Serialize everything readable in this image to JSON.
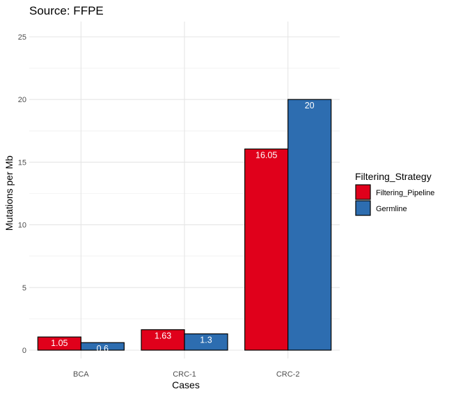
{
  "chart_data": {
    "type": "bar",
    "title": "Source: FFPE",
    "xlabel": "Cases",
    "ylabel": "Mutations per Mb",
    "categories": [
      "BCA",
      "CRC-1",
      "CRC-2"
    ],
    "series": [
      {
        "name": "Filtering_Pipeline",
        "color": "#e0001b",
        "values": [
          1.05,
          1.63,
          16.05
        ],
        "labels": [
          "1.05",
          "1.63",
          "16.05"
        ]
      },
      {
        "name": "Germline",
        "color": "#2d6db0",
        "values": [
          0.6,
          1.3,
          20
        ],
        "labels": [
          "0.6",
          "1.3",
          "20"
        ]
      }
    ],
    "ylim": [
      0,
      25
    ],
    "yticks": [
      "0",
      "5",
      "10",
      "15",
      "20",
      "25"
    ],
    "legend": {
      "title": "Filtering_Strategy",
      "position": "right"
    },
    "grid": true
  }
}
